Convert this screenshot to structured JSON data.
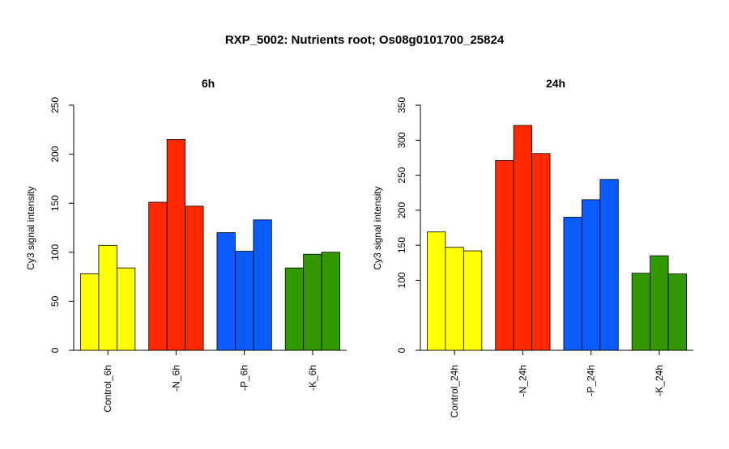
{
  "title": "RXP_5002: Nutrients root; Os08g0101700_25824",
  "colors": {
    "Control": "#ffff00",
    "-N": "#ff2a00",
    "-P": "#0a5cff",
    "-K": "#339900"
  },
  "chart_data": [
    {
      "type": "bar",
      "title": "6h",
      "ylabel": "Cy3 signal intensity",
      "xlabel": "",
      "ylim": [
        0,
        250
      ],
      "yticks": [
        0,
        50,
        100,
        150,
        200,
        250
      ],
      "grid": false,
      "groups": [
        {
          "label": "Control_6h",
          "color_key": "Control",
          "values": [
            78,
            107,
            84
          ]
        },
        {
          "label": "-N_6h",
          "color_key": "-N",
          "values": [
            151,
            215,
            147
          ]
        },
        {
          "label": "-P_6h",
          "color_key": "-P",
          "values": [
            120,
            101,
            133
          ]
        },
        {
          "label": "-K_6h",
          "color_key": "-K",
          "values": [
            84,
            98,
            100
          ]
        }
      ]
    },
    {
      "type": "bar",
      "title": "24h",
      "ylabel": "Cy3 signal intensity",
      "xlabel": "",
      "ylim": [
        0,
        350
      ],
      "yticks": [
        0,
        100,
        150,
        200,
        250,
        300,
        350
      ],
      "grid": false,
      "groups": [
        {
          "label": "Control_24h",
          "color_key": "Control",
          "values": [
            169,
            147,
            142
          ]
        },
        {
          "label": "-N_24h",
          "color_key": "-N",
          "values": [
            271,
            321,
            281
          ]
        },
        {
          "label": "-P_24h",
          "color_key": "-P",
          "values": [
            190,
            215,
            244
          ]
        },
        {
          "label": "-K_24h",
          "color_key": "-K",
          "values": [
            110,
            135,
            109
          ]
        }
      ]
    }
  ]
}
